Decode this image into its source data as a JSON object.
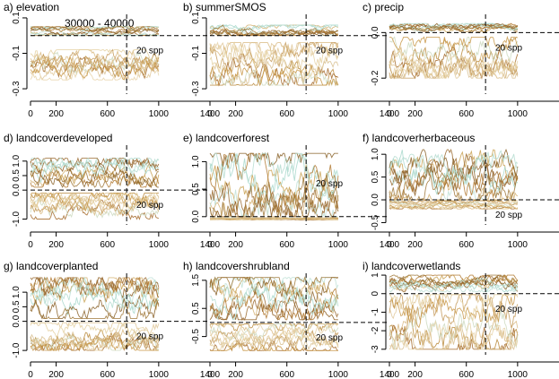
{
  "figure": {
    "series_count_label": "20 spp",
    "ghost_label": "30000 - 40000"
  },
  "chart_data": [
    {
      "type": "line",
      "title": "a) elevation",
      "xlim": [
        0,
        1400
      ],
      "x_ticks": [
        0,
        200,
        600,
        1000,
        1400
      ],
      "ylim": [
        -0.33,
        0.12
      ],
      "y_ticks": [
        0.1,
        -0.1,
        -0.3
      ],
      "y_tick_labels": [
        "0.1",
        "-0.1",
        "-0.3"
      ],
      "iterations": 1000,
      "vline_x": 750,
      "hline_y": 0,
      "species": 20,
      "series_range_pos": [
        0.0,
        0.05
      ],
      "series_range_neg": [
        -0.25,
        -0.08
      ]
    },
    {
      "type": "line",
      "title": "b) summerSMOS",
      "xlim": [
        0,
        1400
      ],
      "x_ticks": [
        0,
        200,
        600,
        1000,
        1400
      ],
      "ylim": [
        -0.33,
        0.12
      ],
      "y_ticks": [
        0.1,
        -0.1,
        -0.3
      ],
      "y_tick_labels": [
        "0.1",
        "-0.1",
        "-0.3"
      ],
      "iterations": 1000,
      "vline_x": 750,
      "hline_y": 0,
      "species": 20,
      "series_range_pos": [
        0.0,
        0.06
      ],
      "series_range_neg": [
        -0.28,
        -0.04
      ]
    },
    {
      "type": "line",
      "title": "c) precip",
      "xlim": [
        0,
        1400
      ],
      "x_ticks": [
        0,
        200,
        600,
        1000,
        1400
      ],
      "ylim": [
        -0.27,
        0.08
      ],
      "y_ticks": [
        0.0,
        -0.2
      ],
      "y_tick_labels": [
        "0.0",
        "-0.2"
      ],
      "iterations": 1000,
      "vline_x": 750,
      "hline_y": 0,
      "species": 20,
      "series_range_pos": [
        0.0,
        0.04
      ],
      "series_range_neg": [
        -0.2,
        -0.02
      ]
    },
    {
      "type": "line",
      "title": "d) landcoverdeveloped",
      "xlim": [
        0,
        1400
      ],
      "x_ticks": [
        0,
        200,
        600,
        1000,
        1400
      ],
      "ylim": [
        -1.2,
        1.55
      ],
      "y_ticks": [
        1.0,
        0.5,
        0.0,
        -1.0
      ],
      "y_tick_labels": [
        "1.0",
        "0.5",
        "0.0",
        "-1.0"
      ],
      "iterations": 1000,
      "vline_x": 750,
      "hline_y": 0,
      "species": 20,
      "series_range_pos": [
        0.1,
        1.1
      ],
      "series_range_neg": [
        -1.0,
        -0.1
      ]
    },
    {
      "type": "line",
      "title": "e) landcoverforest",
      "xlim": [
        0,
        1400
      ],
      "x_ticks": [
        0,
        200,
        600,
        1000,
        1400
      ],
      "ylim": [
        -0.15,
        1.3
      ],
      "y_ticks": [
        0.0,
        0.5,
        1.0
      ],
      "y_tick_labels": [
        "0.0",
        "0.5",
        "1.0"
      ],
      "iterations": 1000,
      "vline_x": 750,
      "hline_y": 0,
      "species": 20,
      "series_range_pos": [
        0.0,
        1.15
      ],
      "series_range_neg": [
        -0.06,
        -0.02
      ]
    },
    {
      "type": "line",
      "title": "f) landcoverherbaceous",
      "xlim": [
        0,
        1400
      ],
      "x_ticks": [
        0,
        200,
        600,
        1000,
        1400
      ],
      "ylim": [
        -0.55,
        1.2
      ],
      "y_ticks": [
        1.0,
        0.5,
        0.0,
        -0.5
      ],
      "y_tick_labels": [
        "1.0",
        "0.5",
        "0.0",
        "-0.5"
      ],
      "iterations": 1000,
      "vline_x": 750,
      "hline_y": 0,
      "species": 20,
      "series_range_pos": [
        0.0,
        1.1
      ],
      "series_range_neg": [
        -0.2,
        -0.02
      ]
    },
    {
      "type": "line",
      "title": "g) landcoverplanted",
      "xlim": [
        0,
        1400
      ],
      "x_ticks": [
        0,
        200,
        600,
        1000,
        1400
      ],
      "ylim": [
        -1.15,
        1.65
      ],
      "y_ticks": [
        1.0,
        0.5,
        0.0,
        -1.0
      ],
      "y_tick_labels": [
        "1.0",
        "0.5",
        "0.0",
        "-1.0"
      ],
      "iterations": 1000,
      "vline_x": 750,
      "hline_y": 0,
      "species": 20,
      "series_range_pos": [
        0.1,
        1.5
      ],
      "series_range_neg": [
        -1.0,
        -0.05
      ]
    },
    {
      "type": "line",
      "title": "h) landcovershrubland",
      "xlim": [
        0,
        1400
      ],
      "x_ticks": [
        0,
        200,
        600,
        1000,
        1400
      ],
      "ylim": [
        -1.15,
        1.75
      ],
      "y_ticks": [
        1.5,
        0.5,
        -0.5
      ],
      "y_tick_labels": [
        "1.5",
        "0.5",
        "-0.5"
      ],
      "iterations": 1000,
      "vline_x": 750,
      "hline_y": 0,
      "species": 20,
      "series_range_pos": [
        0.1,
        1.6
      ],
      "series_range_neg": [
        -1.0,
        -0.05
      ]
    },
    {
      "type": "line",
      "title": "i) landcoverwetlands",
      "xlim": [
        0,
        1400
      ],
      "x_ticks": [
        0,
        200,
        600,
        1000,
        1400
      ],
      "ylim": [
        -3.3,
        1.1
      ],
      "y_ticks": [
        1,
        0,
        -1,
        -2,
        -3
      ],
      "y_tick_labels": [
        "1",
        "0",
        "-1",
        "-2",
        "-3"
      ],
      "iterations": 1000,
      "vline_x": 750,
      "hline_y": 0,
      "species": 20,
      "series_range_pos": [
        0.1,
        1.0
      ],
      "series_range_neg": [
        -3.0,
        -0.05
      ]
    }
  ]
}
